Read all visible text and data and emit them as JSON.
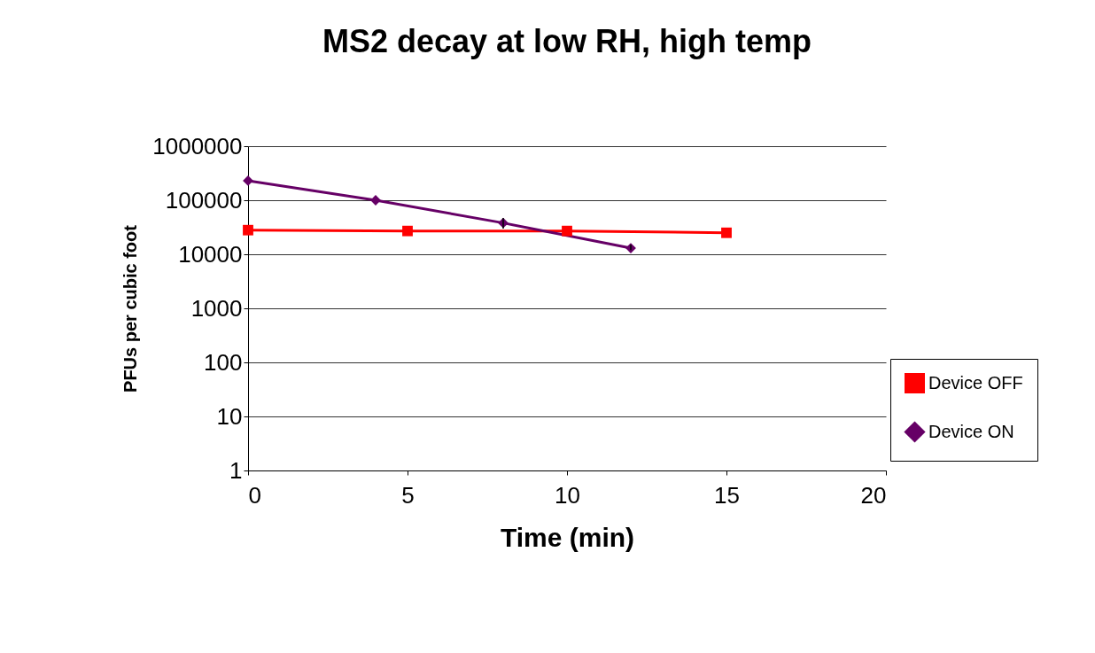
{
  "chart_data": {
    "type": "line",
    "title": "MS2 decay at low RH, high temp",
    "xlabel": "Time (min)",
    "ylabel": "PFUs per cubic foot",
    "log": "y",
    "grid": "y",
    "legend": "right",
    "xlim": [
      0,
      20
    ],
    "xticks": [
      0,
      5,
      10,
      15,
      20
    ],
    "ylim": [
      1,
      1000000
    ],
    "yticks": [
      1,
      10,
      100,
      1000,
      10000,
      100000,
      1000000
    ],
    "series": [
      {
        "name": "Device OFF",
        "color": "#ff0000",
        "marker": "square",
        "x": [
          0,
          5,
          10,
          15
        ],
        "values": [
          28000,
          27000,
          27000,
          25000
        ],
        "errors": [
          null,
          null,
          null,
          null
        ]
      },
      {
        "name": "Device ON",
        "color": "#660066",
        "marker": "diamond",
        "x": [
          0,
          4,
          8,
          12
        ],
        "values": [
          230000,
          100000,
          38000,
          13000
        ],
        "errors": [
          null,
          null,
          [
            30000,
            47000
          ],
          [
            12000,
            15000
          ]
        ]
      }
    ]
  }
}
